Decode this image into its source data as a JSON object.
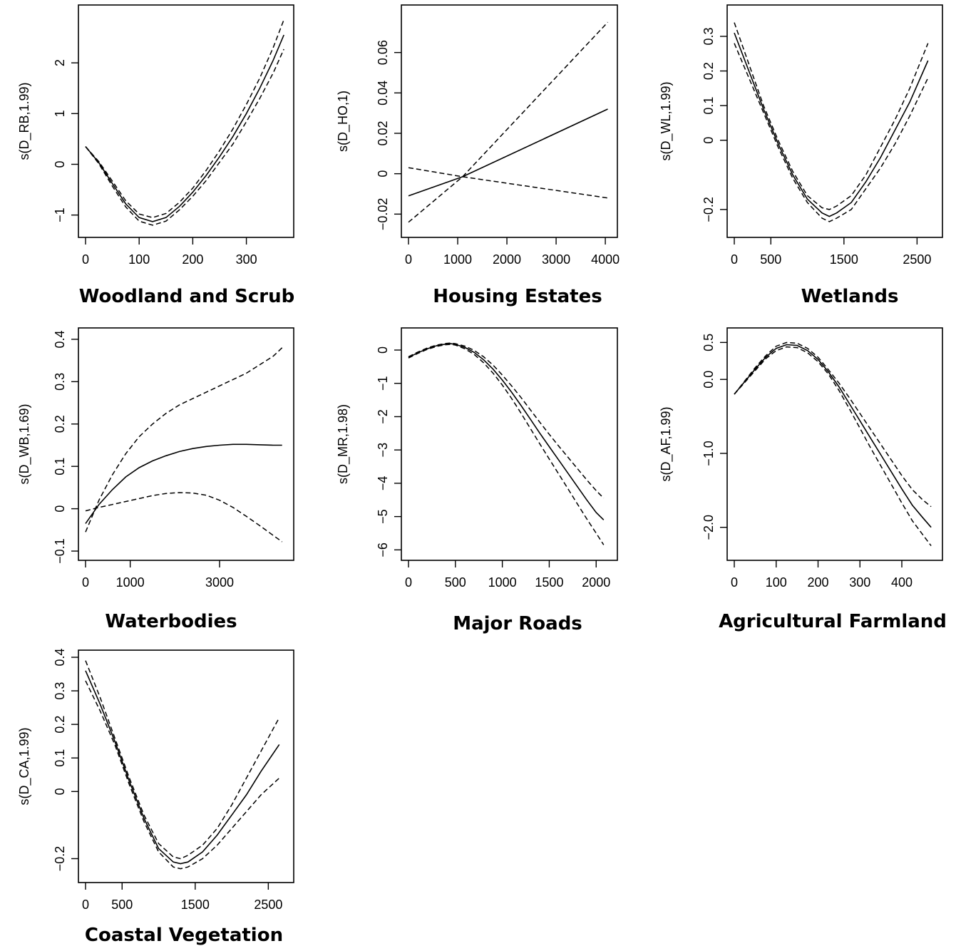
{
  "chart_data": [
    {
      "type": "line",
      "title": "Woodland   and Scrub",
      "ylabel": "s(D_RB,1.99)",
      "xlim": [
        0,
        375
      ],
      "ylim": [
        -1.3,
        3.0
      ],
      "xticks": [
        0,
        100,
        200,
        300
      ],
      "yticks": [
        -1,
        0,
        1,
        2
      ],
      "x": [
        0,
        25,
        50,
        75,
        100,
        125,
        150,
        175,
        200,
        225,
        250,
        275,
        300,
        325,
        350,
        370
      ],
      "series": [
        {
          "values": [
            0.35,
            0.03,
            -0.38,
            -0.78,
            -1.05,
            -1.13,
            -1.05,
            -0.83,
            -0.55,
            -0.22,
            0.15,
            0.55,
            1.0,
            1.5,
            2.05,
            2.55
          ]
        },
        {
          "values": [
            0.35,
            0.05,
            -0.33,
            -0.72,
            -0.98,
            -1.05,
            -0.97,
            -0.75,
            -0.47,
            -0.12,
            0.27,
            0.7,
            1.18,
            1.7,
            2.3,
            2.85
          ]
        },
        {
          "values": [
            0.35,
            0.01,
            -0.43,
            -0.84,
            -1.12,
            -1.2,
            -1.12,
            -0.9,
            -0.63,
            -0.32,
            0.04,
            0.4,
            0.84,
            1.3,
            1.8,
            2.27
          ]
        }
      ]
    },
    {
      "type": "line",
      "title": "Housing Estates",
      "ylabel": "s(D_HO,1)",
      "xlim": [
        0,
        4100
      ],
      "ylim": [
        -0.028,
        0.08
      ],
      "xticks": [
        0,
        1000,
        2000,
        3000,
        4000
      ],
      "yticks": [
        -0.02,
        0.0,
        0.02,
        0.04,
        0.06
      ],
      "x": [
        0,
        1100,
        4050
      ],
      "series": [
        {
          "values": [
            -0.011,
            -0.0015,
            0.032
          ]
        },
        {
          "values": [
            -0.024,
            -0.0015,
            0.075
          ]
        },
        {
          "values": [
            0.003,
            -0.0015,
            -0.012
          ]
        }
      ]
    },
    {
      "type": "line",
      "title": "Wetlands",
      "ylabel": "s(D_WL,1.99)",
      "xlim": [
        0,
        2750
      ],
      "ylim": [
        -0.26,
        0.37
      ],
      "xticks": [
        0,
        500,
        1500,
        2500
      ],
      "yticks": [
        -0.2,
        0.0,
        0.1,
        0.2,
        0.3
      ],
      "x": [
        0,
        200,
        400,
        600,
        800,
        1000,
        1200,
        1300,
        1400,
        1600,
        1800,
        2000,
        2200,
        2400,
        2650
      ],
      "series": [
        {
          "values": [
            0.31,
            0.2,
            0.09,
            -0.01,
            -0.1,
            -0.17,
            -0.21,
            -0.22,
            -0.21,
            -0.18,
            -0.12,
            -0.05,
            0.03,
            0.11,
            0.23
          ]
        },
        {
          "values": [
            0.34,
            0.22,
            0.1,
            0.0,
            -0.09,
            -0.16,
            -0.195,
            -0.2,
            -0.19,
            -0.16,
            -0.1,
            -0.02,
            0.06,
            0.15,
            0.28
          ]
        },
        {
          "values": [
            0.28,
            0.18,
            0.08,
            -0.02,
            -0.11,
            -0.18,
            -0.225,
            -0.235,
            -0.225,
            -0.2,
            -0.14,
            -0.08,
            -0.01,
            0.07,
            0.18
          ]
        }
      ]
    },
    {
      "type": "line",
      "title": "Waterbodies",
      "ylabel": "s(D_WB,1.69)",
      "xlim": [
        0,
        4500
      ],
      "ylim": [
        -0.105,
        0.41
      ],
      "xticks": [
        0,
        1000,
        3000
      ],
      "yticks": [
        -0.1,
        0.0,
        0.1,
        0.2,
        0.3,
        0.4
      ],
      "x": [
        0,
        300,
        600,
        900,
        1200,
        1500,
        1800,
        2100,
        2400,
        2700,
        3000,
        3300,
        3600,
        3900,
        4200,
        4400
      ],
      "series": [
        {
          "values": [
            -0.035,
            0.01,
            0.045,
            0.075,
            0.097,
            0.113,
            0.125,
            0.135,
            0.142,
            0.147,
            0.15,
            0.152,
            0.152,
            0.151,
            0.15,
            0.15
          ]
        },
        {
          "values": [
            -0.055,
            0.02,
            0.08,
            0.13,
            0.17,
            0.2,
            0.225,
            0.245,
            0.26,
            0.275,
            0.29,
            0.305,
            0.32,
            0.34,
            0.36,
            0.38
          ]
        },
        {
          "values": [
            -0.005,
            0.003,
            0.01,
            0.017,
            0.024,
            0.031,
            0.036,
            0.038,
            0.037,
            0.032,
            0.02,
            0.003,
            -0.018,
            -0.04,
            -0.063,
            -0.078
          ]
        }
      ]
    },
    {
      "type": "line",
      "title": "Major Roads",
      "ylabel": "s(D_MR,1.98)",
      "xlim": [
        0,
        2150
      ],
      "ylim": [
        -6.1,
        0.45
      ],
      "xticks": [
        0,
        500,
        1000,
        1500,
        2000
      ],
      "yticks": [
        -6,
        -5,
        -4,
        -3,
        -2,
        -1,
        0
      ],
      "x": [
        0,
        100,
        200,
        300,
        400,
        450,
        500,
        600,
        700,
        800,
        900,
        1000,
        1100,
        1200,
        1300,
        1400,
        1500,
        1600,
        1700,
        1800,
        1900,
        2000,
        2080
      ],
      "series": [
        {
          "values": [
            -0.22,
            -0.08,
            0.04,
            0.13,
            0.18,
            0.19,
            0.17,
            0.08,
            -0.07,
            -0.29,
            -0.57,
            -0.9,
            -1.27,
            -1.67,
            -2.08,
            -2.5,
            -2.9,
            -3.3,
            -3.7,
            -4.1,
            -4.5,
            -4.88,
            -5.1
          ]
        },
        {
          "values": [
            -0.2,
            -0.06,
            0.06,
            0.15,
            0.2,
            0.21,
            0.19,
            0.12,
            -0.01,
            -0.2,
            -0.45,
            -0.75,
            -1.08,
            -1.43,
            -1.8,
            -2.17,
            -2.53,
            -2.88,
            -3.22,
            -3.56,
            -3.9,
            -4.22,
            -4.45
          ]
        },
        {
          "values": [
            -0.24,
            -0.1,
            0.02,
            0.11,
            0.16,
            0.17,
            0.15,
            0.04,
            -0.13,
            -0.38,
            -0.69,
            -1.05,
            -1.46,
            -1.9,
            -2.36,
            -2.82,
            -3.27,
            -3.72,
            -4.17,
            -4.62,
            -5.07,
            -5.5,
            -5.85
          ]
        }
      ]
    },
    {
      "type": "line",
      "title": "Agricultural Farmland",
      "ylabel": "s(D_AF,1.99)",
      "xlim": [
        0,
        480
      ],
      "ylim": [
        -2.35,
        0.6
      ],
      "xticks": [
        0,
        100,
        200,
        300,
        400
      ],
      "yticks": [
        -2.0,
        -1.0,
        0.0,
        0.5
      ],
      "ytick_labels": [
        "−2.0",
        "−1.0",
        "0.0",
        "0.5"
      ],
      "x": [
        0,
        25,
        50,
        75,
        100,
        125,
        150,
        175,
        200,
        225,
        250,
        275,
        300,
        325,
        350,
        375,
        400,
        425,
        450,
        470
      ],
      "series": [
        {
          "values": [
            -0.2,
            -0.03,
            0.14,
            0.3,
            0.42,
            0.47,
            0.46,
            0.39,
            0.27,
            0.1,
            -0.1,
            -0.33,
            -0.56,
            -0.79,
            -1.02,
            -1.25,
            -1.48,
            -1.7,
            -1.87,
            -2.0
          ]
        },
        {
          "values": [
            -0.2,
            -0.02,
            0.16,
            0.32,
            0.45,
            0.5,
            0.49,
            0.42,
            0.3,
            0.13,
            -0.05,
            -0.25,
            -0.46,
            -0.67,
            -0.88,
            -1.09,
            -1.3,
            -1.49,
            -1.63,
            -1.72
          ]
        },
        {
          "values": [
            -0.2,
            -0.04,
            0.12,
            0.28,
            0.39,
            0.44,
            0.43,
            0.36,
            0.24,
            0.07,
            -0.15,
            -0.4,
            -0.66,
            -0.92,
            -1.17,
            -1.42,
            -1.67,
            -1.91,
            -2.1,
            -2.25
          ]
        }
      ]
    },
    {
      "type": "line",
      "title": "Coastal Vegetation",
      "ylabel": "s(D_CA,1.99)",
      "xlim": [
        0,
        2750
      ],
      "ylim": [
        -0.25,
        0.4
      ],
      "xticks": [
        0,
        500,
        1500,
        2500
      ],
      "yticks": [
        -0.2,
        0.0,
        0.1,
        0.2,
        0.3,
        0.4
      ],
      "x": [
        0,
        200,
        400,
        600,
        800,
        1000,
        1200,
        1300,
        1400,
        1600,
        1800,
        2000,
        2200,
        2400,
        2650
      ],
      "series": [
        {
          "values": [
            0.36,
            0.26,
            0.15,
            0.03,
            -0.08,
            -0.17,
            -0.21,
            -0.215,
            -0.21,
            -0.18,
            -0.13,
            -0.07,
            -0.01,
            0.06,
            0.14
          ]
        },
        {
          "values": [
            0.39,
            0.28,
            0.16,
            0.04,
            -0.07,
            -0.155,
            -0.195,
            -0.2,
            -0.19,
            -0.16,
            -0.11,
            -0.04,
            0.04,
            0.12,
            0.22
          ]
        },
        {
          "values": [
            0.33,
            0.24,
            0.14,
            0.02,
            -0.09,
            -0.18,
            -0.225,
            -0.23,
            -0.225,
            -0.2,
            -0.16,
            -0.11,
            -0.06,
            -0.01,
            0.04
          ]
        }
      ]
    }
  ]
}
